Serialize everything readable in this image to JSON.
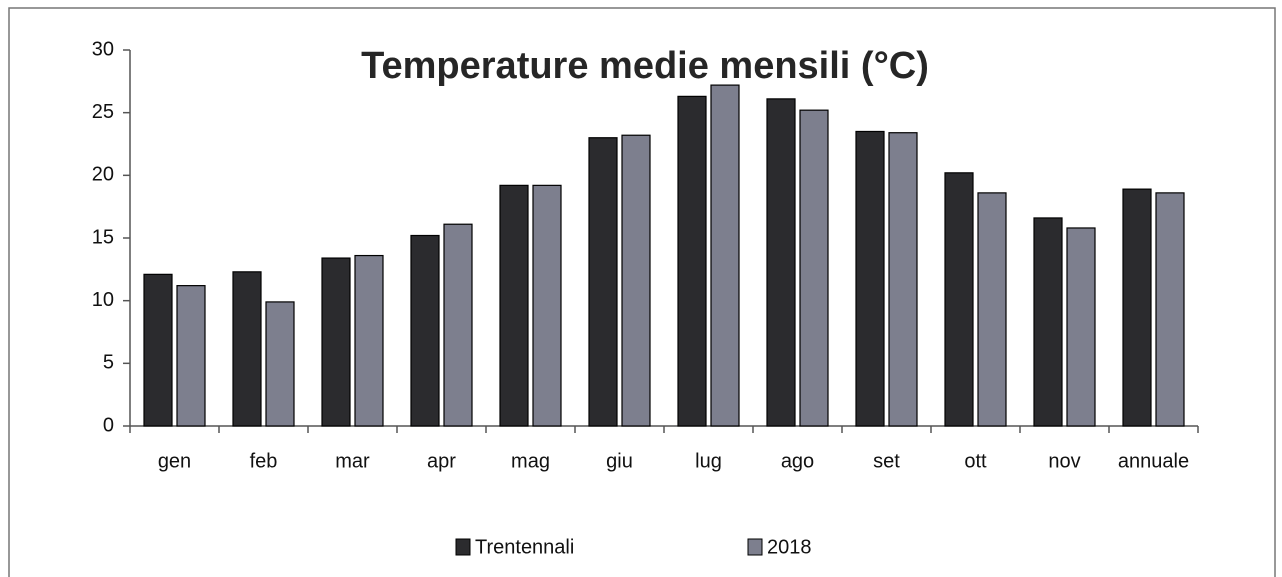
{
  "chart_data": {
    "type": "bar",
    "title": "Temperature medie mensili (°C)",
    "categories": [
      "gen",
      "feb",
      "mar",
      "apr",
      "mag",
      "giu",
      "lug",
      "ago",
      "set",
      "ott",
      "nov",
      "annuale"
    ],
    "series": [
      {
        "name": "Trentennali",
        "color": "#2b2b2e",
        "values": [
          12.1,
          12.3,
          13.4,
          15.2,
          19.2,
          23.0,
          26.3,
          26.1,
          23.5,
          20.2,
          16.6,
          18.9
        ]
      },
      {
        "name": "2018",
        "color": "#7d7f8e",
        "values": [
          11.2,
          9.9,
          13.6,
          16.1,
          19.2,
          23.2,
          27.2,
          25.2,
          23.4,
          18.6,
          15.8,
          18.6
        ]
      }
    ],
    "ylim": [
      0,
      30
    ],
    "yticks": [
      0,
      5,
      10,
      15,
      20,
      25,
      30
    ],
    "grid": false,
    "legend": "bottom"
  }
}
